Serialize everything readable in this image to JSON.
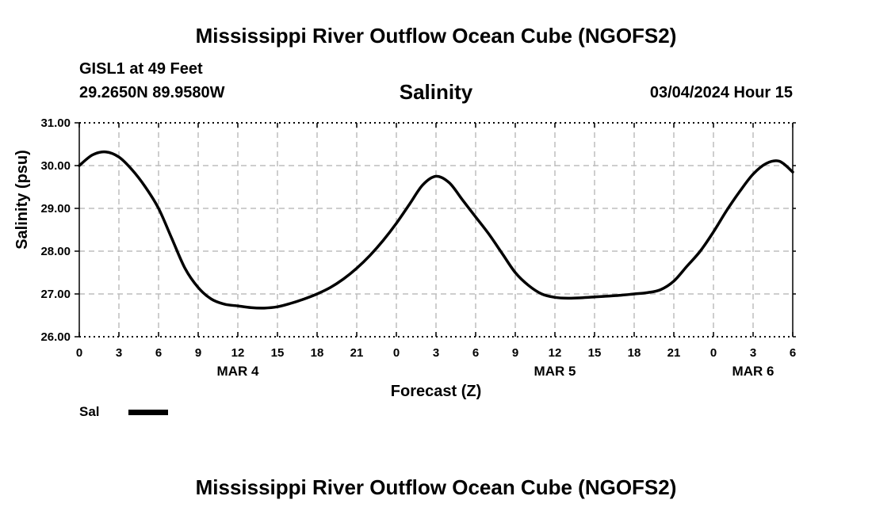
{
  "header": {
    "title": "Mississippi River Outflow Ocean Cube (NGOFS2)",
    "station": "GISL1 at 49 Feet",
    "coords": "29.2650N  89.9580W",
    "datetime": "03/04/2024 Hour 15"
  },
  "legend": {
    "label": "Sal"
  },
  "footer": {
    "title": "Mississippi River Outflow Ocean Cube (NGOFS2)"
  },
  "chart_data": {
    "type": "line",
    "title": "Salinity",
    "xlabel": "Forecast (Z)",
    "ylabel": "Salinity (psu)",
    "xlim": [
      0,
      54
    ],
    "ylim": [
      26,
      31
    ],
    "x_tick_labels": [
      "0",
      "3",
      "6",
      "9",
      "12",
      "15",
      "18",
      "21",
      "0",
      "3",
      "6",
      "9",
      "12",
      "15",
      "18",
      "21",
      "0",
      "3",
      "6"
    ],
    "y_tick_labels": [
      "26.00",
      "27.00",
      "28.00",
      "29.00",
      "30.00",
      "31.00"
    ],
    "day_labels": [
      {
        "label": "MAR 4",
        "hour": 12
      },
      {
        "label": "MAR 5",
        "hour": 36
      },
      {
        "label": "MAR 6",
        "hour": 51
      }
    ],
    "grid": true,
    "series": [
      {
        "name": "Sal",
        "color": "#000000",
        "x": [
          0,
          1,
          2,
          3,
          4,
          5,
          6,
          7,
          8,
          9,
          10,
          11,
          12,
          13,
          14,
          15,
          16,
          17,
          18,
          19,
          20,
          21,
          22,
          23,
          24,
          25,
          26,
          27,
          28,
          29,
          30,
          31,
          32,
          33,
          34,
          35,
          36,
          37,
          38,
          39,
          40,
          41,
          42,
          43,
          44,
          45,
          46,
          47,
          48,
          49,
          50,
          51,
          52,
          53,
          54
        ],
        "values": [
          30.0,
          30.25,
          30.32,
          30.2,
          29.9,
          29.5,
          29.0,
          28.3,
          27.6,
          27.15,
          26.88,
          26.76,
          26.72,
          26.68,
          26.67,
          26.7,
          26.78,
          26.88,
          27.0,
          27.15,
          27.35,
          27.6,
          27.9,
          28.25,
          28.65,
          29.1,
          29.55,
          29.75,
          29.6,
          29.2,
          28.8,
          28.4,
          27.95,
          27.5,
          27.2,
          27.0,
          26.92,
          26.9,
          26.91,
          26.93,
          26.95,
          26.97,
          27.0,
          27.03,
          27.1,
          27.3,
          27.65,
          28.0,
          28.45,
          28.95,
          29.4,
          29.8,
          30.05,
          30.1,
          29.85
        ]
      }
    ]
  }
}
